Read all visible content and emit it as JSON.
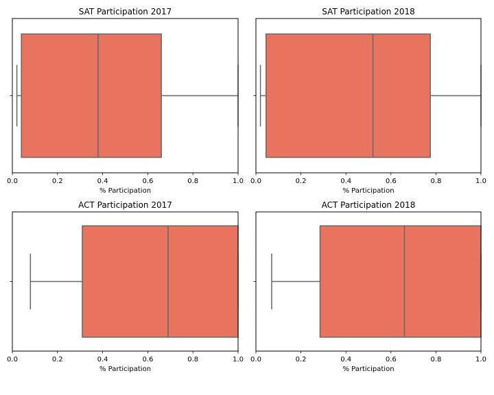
{
  "chart_data": [
    {
      "type": "box",
      "title": "SAT Participation 2017",
      "xlabel": "% Participation",
      "ylabel": "",
      "xlim": [
        0.0,
        1.0
      ],
      "xticks": [
        "0.0",
        "0.2",
        "0.4",
        "0.6",
        "0.8",
        "1.0"
      ],
      "box": {
        "whisker_low": 0.02,
        "q1": 0.04,
        "median": 0.38,
        "q3": 0.66,
        "whisker_high": 1.0
      },
      "fill_color": "#e8735f",
      "edge_color": "#666666"
    },
    {
      "type": "box",
      "title": "SAT Participation 2018",
      "xlabel": "% Participation",
      "ylabel": "",
      "xlim": [
        0.0,
        1.0
      ],
      "xticks": [
        "0.0",
        "0.2",
        "0.4",
        "0.6",
        "0.8",
        "1.0"
      ],
      "box": {
        "whisker_low": 0.02,
        "q1": 0.045,
        "median": 0.52,
        "q3": 0.775,
        "whisker_high": 1.0
      },
      "fill_color": "#e8735f",
      "edge_color": "#666666"
    },
    {
      "type": "box",
      "title": "ACT Participation 2017",
      "xlabel": "% Participation",
      "ylabel": "",
      "xlim": [
        0.0,
        1.0
      ],
      "xticks": [
        "0.0",
        "0.2",
        "0.4",
        "0.6",
        "0.8",
        "1.0"
      ],
      "box": {
        "whisker_low": 0.08,
        "q1": 0.31,
        "median": 0.69,
        "q3": 1.0,
        "whisker_high": 1.0
      },
      "fill_color": "#e8735f",
      "edge_color": "#666666"
    },
    {
      "type": "box",
      "title": "ACT Participation 2018",
      "xlabel": "% Participation",
      "ylabel": "",
      "xlim": [
        0.0,
        1.0
      ],
      "xticks": [
        "0.0",
        "0.2",
        "0.4",
        "0.6",
        "0.8",
        "1.0"
      ],
      "box": {
        "whisker_low": 0.07,
        "q1": 0.285,
        "median": 0.66,
        "q3": 1.0,
        "whisker_high": 1.0
      },
      "fill_color": "#e8735f",
      "edge_color": "#666666"
    }
  ]
}
